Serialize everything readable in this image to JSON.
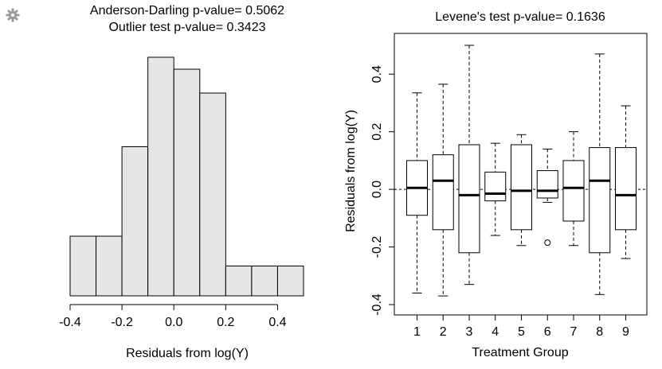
{
  "toolbar": {
    "settings_icon": "gear-icon"
  },
  "chart_data": [
    {
      "type": "bar",
      "title_lines": [
        "Anderson-Darling p-value= 0.5062",
        "Outlier test p-value= 0.3423"
      ],
      "xlabel": "Residuals from log(Y)",
      "ylabel": "",
      "bin_edges": [
        -0.4,
        -0.3,
        -0.2,
        -0.1,
        0.0,
        0.1,
        0.2,
        0.3,
        0.4,
        0.5
      ],
      "values": [
        2,
        2,
        5,
        8,
        7.6,
        6.8,
        1,
        1,
        1
      ],
      "xlim": [
        -0.4,
        0.5
      ],
      "ylim": [
        0,
        8.4
      ],
      "xticks": [
        -0.4,
        -0.2,
        0.0,
        0.2,
        0.4
      ],
      "xtick_labels": [
        "-0.4",
        "-0.2",
        "0.0",
        "0.2",
        "0.4"
      ],
      "bar_color": "#e6e6e6"
    },
    {
      "type": "boxplot",
      "title": "Levene's test p-value= 0.1636",
      "xlabel": "Treatment Group",
      "ylabel": "Residuals from log(Y)",
      "categories": [
        "1",
        "2",
        "3",
        "4",
        "5",
        "6",
        "7",
        "8",
        "9"
      ],
      "boxes": [
        {
          "lower_whisker": -0.36,
          "q1": -0.09,
          "median": 0.005,
          "q3": 0.1,
          "upper_whisker": 0.335,
          "outliers": []
        },
        {
          "lower_whisker": -0.37,
          "q1": -0.14,
          "median": 0.03,
          "q3": 0.12,
          "upper_whisker": 0.365,
          "outliers": []
        },
        {
          "lower_whisker": -0.33,
          "q1": -0.22,
          "median": -0.02,
          "q3": 0.155,
          "upper_whisker": 0.5,
          "outliers": []
        },
        {
          "lower_whisker": -0.16,
          "q1": -0.04,
          "median": -0.015,
          "q3": 0.06,
          "upper_whisker": 0.16,
          "outliers": []
        },
        {
          "lower_whisker": -0.195,
          "q1": -0.14,
          "median": -0.005,
          "q3": 0.155,
          "upper_whisker": 0.19,
          "outliers": []
        },
        {
          "lower_whisker": -0.045,
          "q1": -0.03,
          "median": -0.005,
          "q3": 0.065,
          "upper_whisker": 0.14,
          "outliers": [
            -0.185
          ]
        },
        {
          "lower_whisker": -0.195,
          "q1": -0.11,
          "median": 0.005,
          "q3": 0.1,
          "upper_whisker": 0.2,
          "outliers": []
        },
        {
          "lower_whisker": -0.365,
          "q1": -0.22,
          "median": 0.03,
          "q3": 0.145,
          "upper_whisker": 0.47,
          "outliers": []
        },
        {
          "lower_whisker": -0.24,
          "q1": -0.14,
          "median": -0.02,
          "q3": 0.145,
          "upper_whisker": 0.29,
          "outliers": []
        }
      ],
      "ylim": [
        -0.4,
        0.5
      ],
      "yticks": [
        -0.4,
        -0.2,
        0.0,
        0.2,
        0.4
      ],
      "ytick_labels": [
        "-0.4",
        "-0.2",
        "0.0",
        "0.2",
        "0.4"
      ],
      "reference_line": 0.0,
      "grid": false
    }
  ]
}
